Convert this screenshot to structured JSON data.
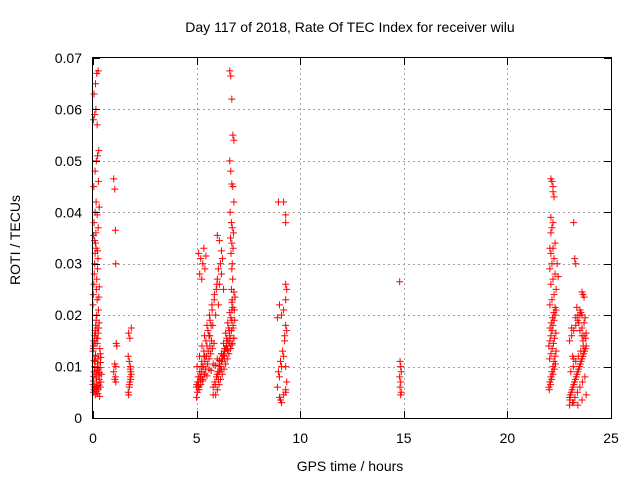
{
  "chart_data": {
    "type": "scatter",
    "title": "Day 117 of 2018, Rate Of TEC Index for receiver wilu",
    "xlabel": "GPS time / hours",
    "ylabel": "ROTI / TECUs",
    "xlim": [
      0,
      25
    ],
    "ylim": [
      0,
      0.07
    ],
    "xticks": [
      0,
      5,
      10,
      15,
      20,
      25
    ],
    "xtick_labels": [
      "0",
      "5",
      "10",
      "15",
      "20",
      "25"
    ],
    "yticks": [
      0,
      0.01,
      0.02,
      0.03,
      0.04,
      0.05,
      0.06,
      0.07
    ],
    "ytick_labels": [
      "0",
      "0.01",
      "0.02",
      "0.03",
      "0.04",
      "0.05",
      "0.06",
      "0.07"
    ],
    "grid": true,
    "marker": "+",
    "color": "#ff0000",
    "series": [
      {
        "name": "ROTI",
        "x": [
          0.0,
          0.02,
          0.04,
          0.06,
          0.08,
          0.1,
          0.12,
          0.14,
          0.16,
          0.18,
          0.2,
          0.22,
          0.24,
          0.26,
          0.28,
          0.3,
          0.32,
          0.34,
          0.36,
          0.38,
          0.4,
          0.0,
          0.03,
          0.05,
          0.08,
          0.1,
          0.13,
          0.15,
          0.18,
          0.2,
          0.23,
          0.25,
          0.28,
          0.3,
          0.33,
          0.35,
          0.38,
          0.02,
          0.05,
          0.08,
          0.11,
          0.14,
          0.17,
          0.2,
          0.23,
          0.26,
          0.29,
          0.32,
          0.35,
          0.0,
          0.02,
          0.04,
          0.06,
          0.08,
          0.1,
          0.12,
          0.14,
          0.16,
          0.18,
          0.2,
          0.22,
          0.24,
          0.26,
          0.28,
          0.3,
          0.05,
          0.1,
          0.15,
          0.2,
          0.25,
          0.3,
          0.04,
          0.1,
          0.16,
          0.22,
          0.28,
          0.02,
          0.08,
          0.14,
          0.2,
          0.26,
          0.05,
          0.12,
          0.18,
          0.25,
          0.03,
          0.08,
          0.15,
          0.22,
          0.05,
          0.12,
          0.2,
          0.02,
          0.1,
          0.18,
          0.05,
          0.12,
          1.0,
          1.05,
          1.08,
          1.1,
          1.12,
          1.15,
          1.05,
          1.1,
          1.0,
          1.08,
          1.05,
          1.1,
          1.7,
          1.72,
          1.75,
          1.78,
          1.8,
          1.82,
          1.85,
          1.7,
          1.75,
          1.8,
          1.85,
          1.72,
          1.78,
          1.82,
          1.76,
          1.8,
          5.0,
          5.08,
          5.16,
          5.24,
          5.32,
          5.4,
          5.48,
          5.56,
          5.64,
          5.72,
          5.8,
          5.88,
          5.96,
          6.04,
          6.12,
          6.2,
          6.28,
          6.36,
          6.44,
          6.52,
          6.6,
          6.68,
          6.76,
          6.84,
          5.04,
          5.12,
          5.2,
          5.28,
          5.36,
          5.44,
          5.52,
          5.6,
          5.68,
          5.76,
          5.84,
          5.92,
          6.0,
          6.08,
          6.16,
          6.24,
          6.32,
          6.4,
          6.48,
          6.56,
          6.64,
          6.72,
          6.8,
          5.0,
          5.1,
          5.2,
          5.3,
          5.4,
          5.5,
          5.6,
          5.7,
          5.8,
          5.9,
          6.0,
          6.1,
          6.2,
          6.3,
          6.4,
          6.5,
          6.6,
          6.7,
          6.8,
          5.05,
          5.15,
          5.25,
          5.35,
          5.45,
          5.55,
          5.65,
          5.75,
          5.85,
          5.95,
          6.05,
          6.15,
          6.25,
          6.35,
          6.45,
          6.55,
          6.65,
          6.75,
          6.85,
          5.02,
          5.14,
          5.26,
          5.38,
          5.5,
          5.62,
          5.74,
          5.86,
          5.98,
          6.1,
          6.22,
          6.34,
          6.46,
          6.58,
          6.7,
          6.82,
          5.08,
          5.22,
          5.36,
          5.5,
          5.64,
          5.78,
          5.92,
          6.06,
          6.2,
          6.34,
          6.48,
          6.62,
          6.76,
          5.0,
          5.2,
          5.4,
          5.6,
          5.8,
          6.0,
          6.2,
          6.4,
          6.6,
          6.8,
          5.1,
          5.3,
          5.5,
          5.7,
          5.9,
          6.1,
          6.3,
          6.5,
          6.7,
          5.1,
          5.2,
          5.3,
          5.15,
          5.25,
          5.35,
          5.4,
          5.45,
          6.0,
          6.1,
          6.2,
          6.05,
          6.15,
          6.25,
          6.0,
          6.1,
          6.2,
          6.3,
          6.6,
          6.65,
          6.7,
          6.75,
          6.8,
          6.6,
          6.65,
          6.7,
          6.75,
          6.8,
          6.62,
          6.68,
          6.72,
          6.78,
          6.64,
          6.7,
          6.76,
          6.66,
          6.72,
          6.7,
          6.74,
          6.68,
          6.72,
          6.7,
          8.9,
          9.0,
          9.1,
          9.2,
          9.3,
          9.35,
          8.95,
          9.05,
          9.15,
          9.25,
          9.3,
          8.9,
          9.0,
          9.1,
          9.2,
          9.3,
          9.35,
          9.0,
          9.1,
          9.2,
          9.3,
          9.05,
          9.25,
          9.35,
          9.3,
          9.3,
          9.3,
          8.95,
          9.2,
          9.3,
          14.8,
          14.82,
          14.85,
          14.88,
          14.8,
          14.85,
          14.82,
          14.88,
          14.85,
          22.0,
          22.05,
          22.1,
          22.15,
          22.2,
          22.25,
          22.3,
          22.35,
          22.0,
          22.05,
          22.1,
          22.15,
          22.2,
          22.25,
          22.3,
          22.35,
          22.02,
          22.08,
          22.14,
          22.2,
          22.26,
          22.32,
          22.04,
          22.1,
          22.16,
          22.22,
          22.28,
          22.34,
          22.06,
          22.12,
          22.18,
          22.24,
          22.3,
          22.05,
          22.15,
          22.25,
          22.35,
          22.1,
          22.2,
          22.3,
          22.05,
          22.15,
          22.25,
          22.1,
          22.2,
          22.3,
          22.1,
          22.2,
          22.1,
          22.15,
          22.2,
          22.1,
          22.15,
          22.2,
          22.25,
          22.05,
          22.4,
          22.45,
          23.0,
          23.08,
          23.16,
          23.24,
          23.32,
          23.4,
          23.48,
          23.56,
          23.64,
          23.72,
          23.8,
          23.04,
          23.12,
          23.2,
          23.28,
          23.36,
          23.44,
          23.52,
          23.6,
          23.68,
          23.76,
          23.0,
          23.1,
          23.2,
          23.3,
          23.4,
          23.5,
          23.6,
          23.7,
          23.8,
          23.02,
          23.14,
          23.26,
          23.38,
          23.5,
          23.62,
          23.74,
          23.06,
          23.18,
          23.3,
          23.42,
          23.54,
          23.66,
          23.78,
          23.0,
          23.2,
          23.4,
          23.6,
          23.8,
          23.1,
          23.3,
          23.5,
          23.7,
          23.2,
          23.25,
          23.3,
          23.35,
          23.4,
          23.45,
          23.5,
          23.55,
          23.6,
          23.65,
          23.7,
          23.75,
          23.6,
          23.65,
          23.7,
          23.15,
          23.2,
          23.6
        ],
        "y": [
          0.0065,
          0.0072,
          0.0081,
          0.009,
          0.01,
          0.011,
          0.012,
          0.0085,
          0.0078,
          0.0068,
          0.0092,
          0.0105,
          0.0115,
          0.0095,
          0.0082,
          0.0075,
          0.0088,
          0.0098,
          0.0108,
          0.007,
          0.0085,
          0.013,
          0.014,
          0.015,
          0.016,
          0.017,
          0.018,
          0.019,
          0.02,
          0.0145,
          0.0155,
          0.0165,
          0.0175,
          0.0185,
          0.0135,
          0.0125,
          0.0118,
          0.005,
          0.0055,
          0.006,
          0.0045,
          0.0058,
          0.0052,
          0.0062,
          0.0048,
          0.0056,
          0.0064,
          0.0042,
          0.006,
          0.022,
          0.024,
          0.026,
          0.028,
          0.03,
          0.032,
          0.034,
          0.036,
          0.025,
          0.027,
          0.023,
          0.029,
          0.031,
          0.021,
          0.0235,
          0.0255,
          0.038,
          0.04,
          0.042,
          0.0395,
          0.037,
          0.041,
          0.045,
          0.048,
          0.05,
          0.051,
          0.052,
          0.058,
          0.059,
          0.06,
          0.057,
          0.046,
          0.063,
          0.065,
          0.067,
          0.0675,
          0.0355,
          0.0345,
          0.033,
          0.0325,
          0.015,
          0.0165,
          0.0175,
          0.0135,
          0.0145,
          0.0155,
          0.0112,
          0.0122,
          0.0465,
          0.0445,
          0.0365,
          0.03,
          0.0145,
          0.014,
          0.0105,
          0.01,
          0.009,
          0.008,
          0.0075,
          0.007,
          0.005,
          0.0045,
          0.006,
          0.007,
          0.008,
          0.009,
          0.0085,
          0.012,
          0.011,
          0.01,
          0.0175,
          0.0165,
          0.0155,
          0.0075,
          0.0065,
          0.0095,
          0.006,
          0.007,
          0.008,
          0.009,
          0.01,
          0.011,
          0.012,
          0.013,
          0.014,
          0.015,
          0.006,
          0.007,
          0.008,
          0.009,
          0.01,
          0.011,
          0.012,
          0.013,
          0.014,
          0.015,
          0.016,
          0.017,
          0.018,
          0.019,
          0.005,
          0.0055,
          0.0065,
          0.0075,
          0.0085,
          0.0095,
          0.0105,
          0.0115,
          0.0125,
          0.0135,
          0.0145,
          0.0045,
          0.0055,
          0.0065,
          0.0075,
          0.0085,
          0.0095,
          0.0105,
          0.0115,
          0.0125,
          0.0135,
          0.0145,
          0.0155,
          0.004,
          0.006,
          0.008,
          0.01,
          0.012,
          0.014,
          0.016,
          0.018,
          0.0045,
          0.0065,
          0.0085,
          0.0105,
          0.0125,
          0.0145,
          0.0165,
          0.0185,
          0.0205,
          0.0225,
          0.0245,
          0.007,
          0.009,
          0.011,
          0.013,
          0.015,
          0.017,
          0.019,
          0.021,
          0.023,
          0.025,
          0.0075,
          0.0095,
          0.0115,
          0.0135,
          0.0155,
          0.0175,
          0.0195,
          0.0215,
          0.0235,
          0.01,
          0.012,
          0.014,
          0.016,
          0.018,
          0.02,
          0.022,
          0.024,
          0.026,
          0.009,
          0.011,
          0.013,
          0.015,
          0.017,
          0.019,
          0.021,
          0.008,
          0.01,
          0.012,
          0.014,
          0.016,
          0.018,
          0.02,
          0.022,
          0.0095,
          0.0115,
          0.0135,
          0.0155,
          0.0175,
          0.0065,
          0.0075,
          0.0085,
          0.0095,
          0.0105,
          0.0115,
          0.0125,
          0.0135,
          0.0145,
          0.0155,
          0.0062,
          0.0072,
          0.0082,
          0.0092,
          0.0102,
          0.0112,
          0.0122,
          0.0132,
          0.0142,
          0.032,
          0.031,
          0.03,
          0.028,
          0.027,
          0.033,
          0.029,
          0.0315,
          0.0355,
          0.0345,
          0.0325,
          0.029,
          0.03,
          0.031,
          0.027,
          0.026,
          0.028,
          0.025,
          0.0675,
          0.0665,
          0.062,
          0.055,
          0.054,
          0.05,
          0.048,
          0.0455,
          0.045,
          0.042,
          0.04,
          0.038,
          0.037,
          0.036,
          0.035,
          0.034,
          0.033,
          0.032,
          0.03,
          0.029,
          0.027,
          0.025,
          0.023,
          0.021,
          0.006,
          0.008,
          0.01,
          0.012,
          0.005,
          0.007,
          0.009,
          0.011,
          0.013,
          0.016,
          0.018,
          0.0195,
          0.022,
          0.02,
          0.021,
          0.023,
          0.025,
          0.004,
          0.003,
          0.0045,
          0.0055,
          0.0035,
          0.015,
          0.017,
          0.026,
          0.038,
          0.0395,
          0.042,
          0.042,
          0.01,
          0.0265,
          0.011,
          0.01,
          0.009,
          0.008,
          0.007,
          0.006,
          0.005,
          0.0045,
          0.006,
          0.007,
          0.008,
          0.009,
          0.01,
          0.011,
          0.012,
          0.013,
          0.014,
          0.015,
          0.016,
          0.017,
          0.018,
          0.019,
          0.02,
          0.021,
          0.0055,
          0.0065,
          0.0075,
          0.0085,
          0.0095,
          0.0105,
          0.0115,
          0.0125,
          0.0135,
          0.0145,
          0.0155,
          0.0165,
          0.0175,
          0.0185,
          0.0195,
          0.0205,
          0.0215,
          0.022,
          0.023,
          0.024,
          0.025,
          0.026,
          0.027,
          0.028,
          0.029,
          0.03,
          0.031,
          0.032,
          0.033,
          0.034,
          0.036,
          0.038,
          0.039,
          0.037,
          0.045,
          0.0465,
          0.046,
          0.044,
          0.043,
          0.033,
          0.03,
          0.0275,
          0.004,
          0.005,
          0.006,
          0.007,
          0.008,
          0.009,
          0.01,
          0.011,
          0.012,
          0.013,
          0.014,
          0.0045,
          0.0055,
          0.0065,
          0.0075,
          0.0085,
          0.0095,
          0.0105,
          0.0115,
          0.0125,
          0.0135,
          0.015,
          0.016,
          0.017,
          0.018,
          0.019,
          0.02,
          0.0175,
          0.0185,
          0.0165,
          0.0035,
          0.003,
          0.004,
          0.005,
          0.006,
          0.007,
          0.008,
          0.009,
          0.01,
          0.011,
          0.012,
          0.013,
          0.014,
          0.0155,
          0.0025,
          0.003,
          0.0025,
          0.0035,
          0.0045,
          0.0175,
          0.0195,
          0.021,
          0.016,
          0.038,
          0.031,
          0.03,
          0.0215,
          0.02,
          0.0185,
          0.017,
          0.0205,
          0.0245,
          0.024,
          0.0235,
          0.0195,
          0.016,
          0.015,
          0.013,
          0.012,
          0.0115,
          0.02
        ]
      }
    ]
  }
}
